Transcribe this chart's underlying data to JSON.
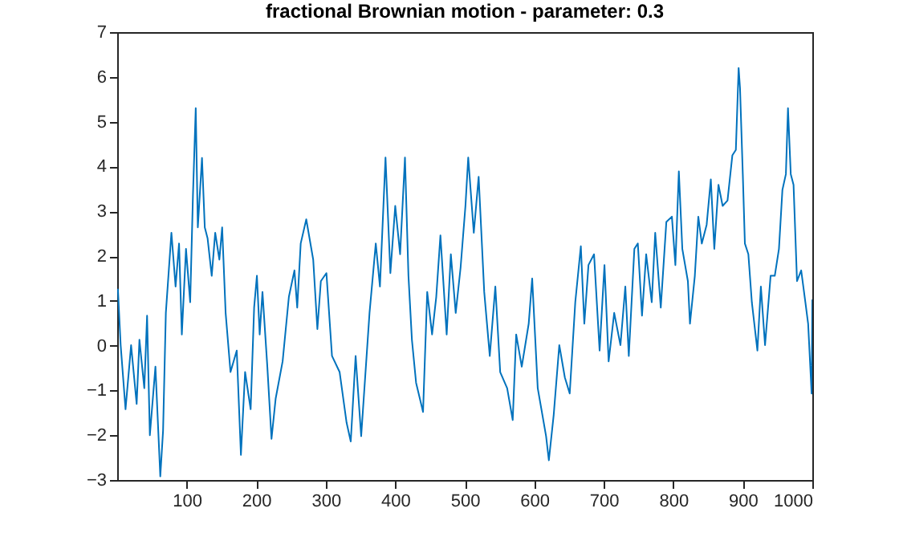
{
  "chart_data": {
    "type": "line",
    "title": "fractional Brownian motion - parameter: 0.3",
    "x": [
      1,
      5,
      12,
      20,
      28,
      32,
      39,
      43,
      47,
      55,
      62,
      66,
      70,
      78,
      84,
      89,
      93,
      99,
      105,
      109,
      113,
      116,
      122,
      126,
      130,
      136,
      141,
      147,
      151,
      156,
      163,
      172,
      178,
      184,
      192,
      197,
      201,
      205,
      209,
      216,
      222,
      228,
      238,
      247,
      255,
      259,
      264,
      272,
      282,
      288,
      293,
      301,
      309,
      320,
      330,
      336,
      343,
      351,
      363,
      372,
      378,
      386,
      393,
      400,
      407,
      414,
      419,
      424,
      430,
      440,
      446,
      453,
      459,
      465,
      474,
      480,
      487,
      494,
      501,
      505,
      513,
      520,
      528,
      536,
      544,
      551,
      561,
      569,
      574,
      582,
      592,
      597,
      605,
      617,
      621,
      628,
      636,
      644,
      651,
      659,
      667,
      672,
      678,
      686,
      694,
      701,
      707,
      715,
      724,
      731,
      736,
      744,
      749,
      755,
      761,
      769,
      774,
      782,
      790,
      798,
      803,
      808,
      813,
      821,
      824,
      831,
      836,
      841,
      848,
      854,
      859,
      865,
      871,
      878,
      885,
      890,
      894,
      896,
      900,
      903,
      908,
      913,
      921,
      926,
      932,
      940,
      946,
      952,
      957,
      962,
      965,
      969,
      973,
      978,
      984,
      990,
      994,
      999,
      1000
    ],
    "series": [
      {
        "color": "#0072bd",
        "values": [
          1.27,
          0.01,
          -1.42,
          0.01,
          -1.3,
          0.13,
          -0.95,
          0.67,
          -2.0,
          -0.47,
          -2.92,
          -1.9,
          0.73,
          2.52,
          1.32,
          2.28,
          0.25,
          2.16,
          0.97,
          3.36,
          5.3,
          2.64,
          4.19,
          2.64,
          2.4,
          1.56,
          2.52,
          1.92,
          2.64,
          0.73,
          -0.59,
          -0.11,
          -2.44,
          -0.59,
          -1.42,
          0.85,
          1.56,
          0.25,
          1.2,
          -0.47,
          -2.08,
          -1.18,
          -0.35,
          1.09,
          1.68,
          0.85,
          2.28,
          2.82,
          1.92,
          0.37,
          1.44,
          1.62,
          -0.23,
          -0.59,
          -1.72,
          -2.14,
          -0.23,
          -2.02,
          0.73,
          2.28,
          1.32,
          4.2,
          1.62,
          3.12,
          2.04,
          4.2,
          1.56,
          0.13,
          -0.83,
          -1.48,
          1.2,
          0.25,
          1.09,
          2.46,
          0.25,
          2.04,
          0.73,
          1.74,
          3.12,
          4.2,
          2.52,
          3.77,
          1.2,
          -0.23,
          1.32,
          -0.59,
          -0.95,
          -1.66,
          0.25,
          -0.47,
          0.49,
          1.5,
          -0.95,
          -2.02,
          -2.56,
          -1.54,
          0.01,
          -0.71,
          -1.07,
          0.97,
          2.22,
          0.49,
          1.8,
          2.04,
          -0.11,
          1.8,
          -0.35,
          0.73,
          0.01,
          1.32,
          -0.23,
          2.16,
          2.28,
          0.67,
          2.04,
          0.97,
          2.52,
          0.85,
          2.76,
          2.88,
          1.8,
          3.89,
          2.16,
          1.44,
          0.49,
          1.56,
          2.88,
          2.28,
          2.7,
          3.71,
          2.16,
          3.59,
          3.12,
          3.24,
          4.25,
          4.37,
          6.2,
          5.75,
          3.83,
          2.28,
          2.04,
          0.97,
          -0.11,
          1.32,
          0.01,
          1.56,
          1.56,
          2.16,
          3.48,
          3.83,
          5.3,
          3.83,
          3.59,
          1.44,
          1.68,
          0.97,
          0.49,
          -1.07,
          1.03
        ]
      }
    ],
    "xlim": [
      0,
      1000
    ],
    "xticks": [
      100,
      200,
      300,
      400,
      500,
      600,
      700,
      800,
      900,
      1000
    ],
    "ylim": [
      -3,
      7
    ],
    "yticks": [
      -3,
      -2,
      -1,
      0,
      1,
      2,
      3,
      4,
      5,
      6,
      7
    ],
    "grid": false,
    "line_style": "solid",
    "marker": "none"
  }
}
